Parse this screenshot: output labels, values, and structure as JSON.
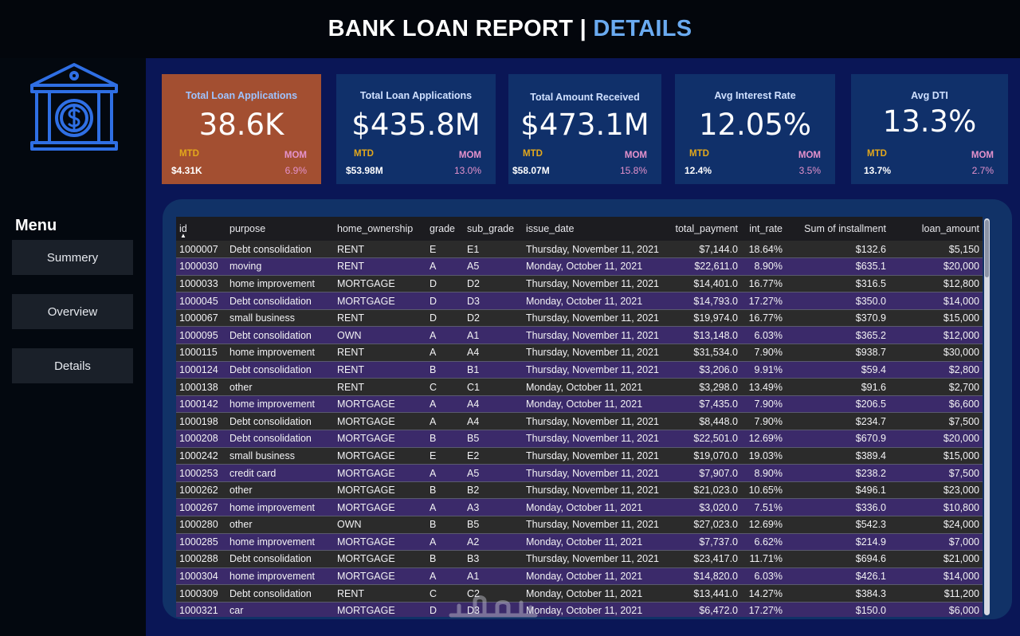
{
  "header": {
    "title_main": "BANK LOAN REPORT | ",
    "title_accent": "DETAILS"
  },
  "sidebar": {
    "logo_icon": "bank-dollar-icon",
    "menu_title": "Menu",
    "items": [
      {
        "label": "Summery"
      },
      {
        "label": "Overview"
      },
      {
        "label": "Details"
      }
    ]
  },
  "kpis": [
    {
      "title": "Total Loan Applications",
      "value": "38.6K",
      "mtd_label": "MTD",
      "mtd_value": "$4.31K",
      "mom_label": "MOM",
      "mom_value": "6.9%",
      "active": true
    },
    {
      "title": "Total Loan Applications",
      "value": "$435.8M",
      "mtd_label": "MTD",
      "mtd_value": "$53.98M",
      "mom_label": "MOM",
      "mom_value": "13.0%"
    },
    {
      "title": "Total Amount Received",
      "value": "$473.1M",
      "mtd_label": "MTD",
      "mtd_value": "$58.07M",
      "mom_label": "MOM",
      "mom_value": "15.8%"
    },
    {
      "title": "Avg Interest Rate",
      "value": "12.05%",
      "mtd_label": "MTD",
      "mtd_value": "12.4%",
      "mom_label": "MOM",
      "mom_value": "3.5%"
    },
    {
      "title": "Avg DTI",
      "value": "13.3%",
      "mtd_label": "MTD",
      "mtd_value": "13.7%",
      "mom_label": "MOM",
      "mom_value": "2.7%"
    }
  ],
  "colors": {
    "active_card": "#a34f31",
    "card": "#10306a",
    "mtd": "#e3a81c",
    "mom": "#e592cc",
    "accent": "#6aaaf0"
  },
  "table": {
    "columns": [
      "id",
      "purpose",
      "home_ownership",
      "grade",
      "sub_grade",
      "issue_date",
      "total_payment",
      "int_rate",
      "Sum of installment",
      "loan_amount"
    ],
    "rows": [
      [
        "1000007",
        "Debt consolidation",
        "RENT",
        "E",
        "E1",
        "Thursday, November 11, 2021",
        "$7,144.0",
        "18.64%",
        "$132.6",
        "$5,150"
      ],
      [
        "1000030",
        "moving",
        "RENT",
        "A",
        "A5",
        "Monday, October 11, 2021",
        "$22,611.0",
        "8.90%",
        "$635.1",
        "$20,000"
      ],
      [
        "1000033",
        "home improvement",
        "MORTGAGE",
        "D",
        "D2",
        "Thursday, November 11, 2021",
        "$14,401.0",
        "16.77%",
        "$316.5",
        "$12,800"
      ],
      [
        "1000045",
        "Debt consolidation",
        "MORTGAGE",
        "D",
        "D3",
        "Monday, October 11, 2021",
        "$14,793.0",
        "17.27%",
        "$350.0",
        "$14,000"
      ],
      [
        "1000067",
        "small business",
        "RENT",
        "D",
        "D2",
        "Thursday, November 11, 2021",
        "$19,974.0",
        "16.77%",
        "$370.9",
        "$15,000"
      ],
      [
        "1000095",
        "Debt consolidation",
        "OWN",
        "A",
        "A1",
        "Thursday, November 11, 2021",
        "$13,148.0",
        "6.03%",
        "$365.2",
        "$12,000"
      ],
      [
        "1000115",
        "home improvement",
        "RENT",
        "A",
        "A4",
        "Thursday, November 11, 2021",
        "$31,534.0",
        "7.90%",
        "$938.7",
        "$30,000"
      ],
      [
        "1000124",
        "Debt consolidation",
        "RENT",
        "B",
        "B1",
        "Thursday, November 11, 2021",
        "$3,206.0",
        "9.91%",
        "$59.4",
        "$2,800"
      ],
      [
        "1000138",
        "other",
        "RENT",
        "C",
        "C1",
        "Monday, October 11, 2021",
        "$3,298.0",
        "13.49%",
        "$91.6",
        "$2,700"
      ],
      [
        "1000142",
        "home improvement",
        "MORTGAGE",
        "A",
        "A4",
        "Monday, October 11, 2021",
        "$7,435.0",
        "7.90%",
        "$206.5",
        "$6,600"
      ],
      [
        "1000198",
        "Debt consolidation",
        "MORTGAGE",
        "A",
        "A4",
        "Thursday, November 11, 2021",
        "$8,448.0",
        "7.90%",
        "$234.7",
        "$7,500"
      ],
      [
        "1000208",
        "Debt consolidation",
        "MORTGAGE",
        "B",
        "B5",
        "Thursday, November 11, 2021",
        "$22,501.0",
        "12.69%",
        "$670.9",
        "$20,000"
      ],
      [
        "1000242",
        "small business",
        "MORTGAGE",
        "E",
        "E2",
        "Thursday, November 11, 2021",
        "$19,070.0",
        "19.03%",
        "$389.4",
        "$15,000"
      ],
      [
        "1000253",
        "credit card",
        "MORTGAGE",
        "A",
        "A5",
        "Thursday, November 11, 2021",
        "$7,907.0",
        "8.90%",
        "$238.2",
        "$7,500"
      ],
      [
        "1000262",
        "other",
        "MORTGAGE",
        "B",
        "B2",
        "Thursday, November 11, 2021",
        "$21,023.0",
        "10.65%",
        "$496.1",
        "$23,000"
      ],
      [
        "1000267",
        "home improvement",
        "MORTGAGE",
        "A",
        "A3",
        "Monday, October 11, 2021",
        "$3,020.0",
        "7.51%",
        "$336.0",
        "$10,800"
      ],
      [
        "1000280",
        "other",
        "OWN",
        "B",
        "B5",
        "Thursday, November 11, 2021",
        "$27,023.0",
        "12.69%",
        "$542.3",
        "$24,000"
      ],
      [
        "1000285",
        "home improvement",
        "MORTGAGE",
        "A",
        "A2",
        "Monday, October 11, 2021",
        "$7,737.0",
        "6.62%",
        "$214.9",
        "$7,000"
      ],
      [
        "1000288",
        "Debt consolidation",
        "MORTGAGE",
        "B",
        "B3",
        "Thursday, November 11, 2021",
        "$23,417.0",
        "11.71%",
        "$694.6",
        "$21,000"
      ],
      [
        "1000304",
        "home improvement",
        "MORTGAGE",
        "A",
        "A1",
        "Monday, October 11, 2021",
        "$14,820.0",
        "6.03%",
        "$426.1",
        "$14,000"
      ],
      [
        "1000309",
        "Debt consolidation",
        "RENT",
        "C",
        "C2",
        "Monday, October 11, 2021",
        "$13,441.0",
        "14.27%",
        "$384.3",
        "$11,200"
      ],
      [
        "1000321",
        "car",
        "MORTGAGE",
        "D",
        "D3",
        "Monday, October 11, 2021",
        "$6,472.0",
        "17.27%",
        "$150.0",
        "$6,000"
      ]
    ]
  }
}
